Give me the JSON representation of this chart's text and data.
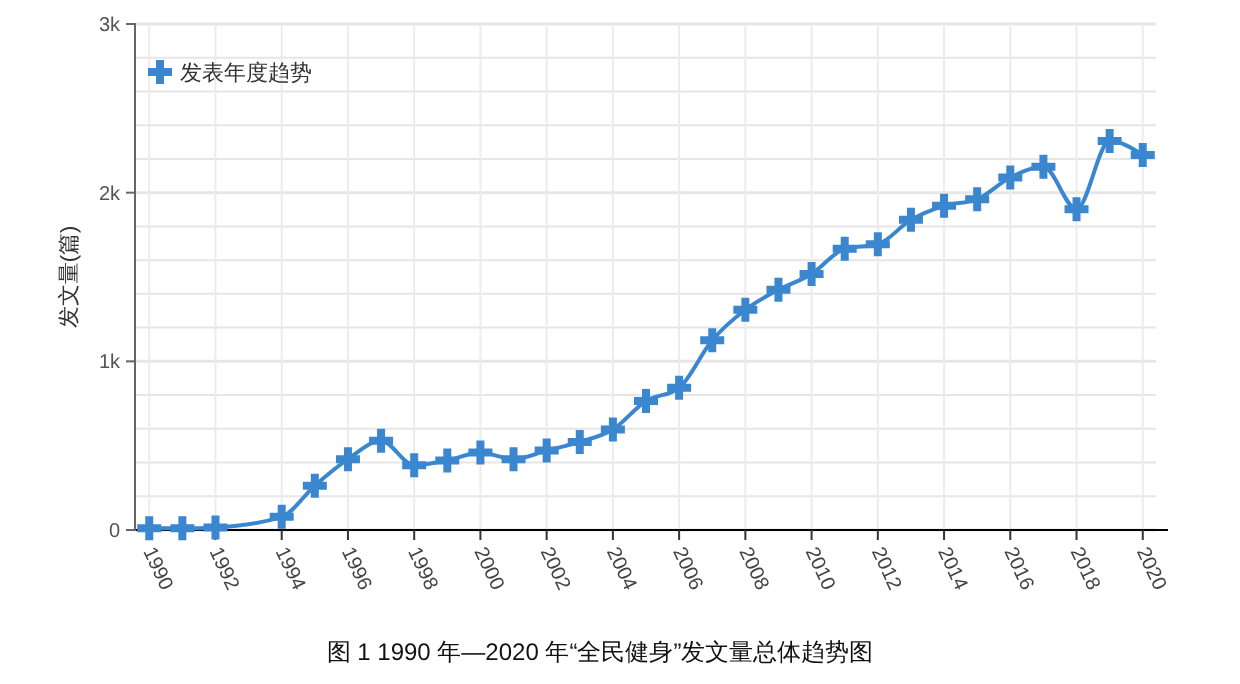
{
  "chart_data": {
    "type": "line",
    "title": "图 1 1990 年—2020 年“全民健身”发文量总体趋势图",
    "ylabel": "发文量(篇)",
    "x": [
      1990,
      1991,
      1992,
      1994,
      1995,
      1996,
      1997,
      1998,
      1999,
      2000,
      2001,
      2002,
      2003,
      2004,
      2005,
      2006,
      2007,
      2008,
      2009,
      2010,
      2011,
      2012,
      2013,
      2014,
      2015,
      2016,
      2017,
      2018,
      2019,
      2020
    ],
    "series": [
      {
        "name": "发表年度趋势",
        "color": "#3a87d0",
        "values": [
          10,
          10,
          15,
          78,
          263,
          420,
          529,
          384,
          412,
          459,
          420,
          471,
          522,
          596,
          765,
          843,
          1125,
          1306,
          1424,
          1518,
          1667,
          1694,
          1839,
          1922,
          1961,
          2090,
          2153,
          1902,
          2306,
          2224
        ]
      }
    ],
    "xlim": [
      1989.6,
      2020.4
    ],
    "xticks": [
      1990,
      1992,
      1994,
      1996,
      1998,
      2000,
      2002,
      2004,
      2006,
      2008,
      2010,
      2012,
      2014,
      2016,
      2018,
      2020
    ],
    "ylim": [
      0,
      3000
    ],
    "yticks": [
      {
        "value": 0,
        "label": "0"
      },
      {
        "value": 200,
        "label": null
      },
      {
        "value": 400,
        "label": null
      },
      {
        "value": 600,
        "label": null
      },
      {
        "value": 800,
        "label": null
      },
      {
        "value": 1000,
        "label": "1k"
      },
      {
        "value": 1200,
        "label": null
      },
      {
        "value": 1400,
        "label": null
      },
      {
        "value": 1600,
        "label": null
      },
      {
        "value": 1800,
        "label": null
      },
      {
        "value": 2000,
        "label": "2k"
      },
      {
        "value": 2200,
        "label": null
      },
      {
        "value": 2400,
        "label": null
      },
      {
        "value": 2600,
        "label": null
      },
      {
        "value": 2800,
        "label": null
      },
      {
        "value": 3000,
        "label": "3k"
      }
    ],
    "grid": true,
    "legend": "top left",
    "marker": "cross",
    "line_style": "solid"
  }
}
